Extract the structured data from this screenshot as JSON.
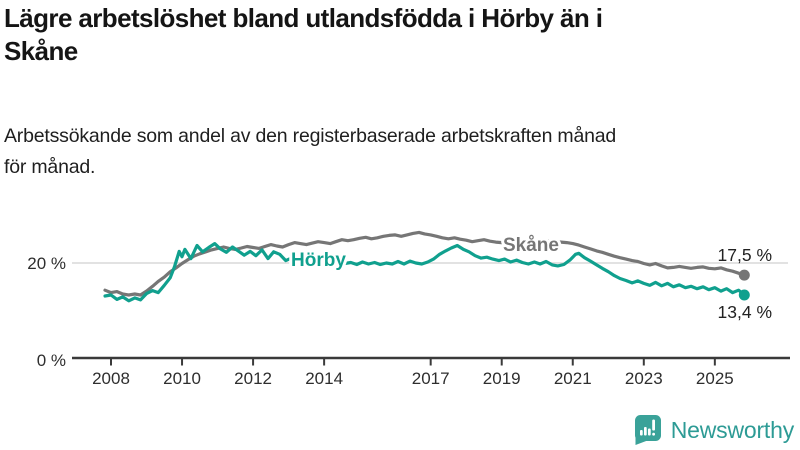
{
  "header": {
    "title": "Lägre arbetslöshet bland utlandsfödda i Hörby än i Skåne",
    "title_lines": [
      "Lägre arbetslöshet bland utlandsfödda i Hörby än i",
      "Skåne"
    ],
    "subtitle": "Arbetssökande som andel av den registerbaserade arbetskraften månad för månad.",
    "subtitle_lines": [
      "Arbetssökande som andel av den registerbaserade arbetskraften månad",
      "för månad."
    ]
  },
  "footer": {
    "brand": "Newsworthy",
    "brand_color": "#2d9b95",
    "logo_icon": "bar-chart-speech-bubble-icon",
    "logo_color": "#3aa299"
  },
  "chart_data": {
    "type": "line",
    "title": "Lägre arbetslöshet bland utlandsfödda i Hörby än i Skåne",
    "subtitle": "Arbetssökande som andel av den registerbaserade arbetskraften månad för månad.",
    "xlabel": "",
    "ylabel": "",
    "x_unit": "year (monthly data)",
    "y_unit": "%",
    "xlim": [
      2007.8,
      2026.5
    ],
    "ylim": [
      0,
      30
    ],
    "grid": "single horizontal gridline at 20%",
    "grid_values": [
      20
    ],
    "x_ticks": [
      2008,
      2010,
      2012,
      2014,
      2017,
      2019,
      2021,
      2023,
      2025
    ],
    "y_ticks": [
      {
        "value": 0,
        "label": "0 %"
      },
      {
        "value": 20,
        "label": "20 %"
      }
    ],
    "legend_position": "inline labels on lines",
    "colors": {
      "skane": "#767676",
      "horby": "#10a08e",
      "grid": "#d9d9d9",
      "axis": "#3a3a3a"
    },
    "series": [
      {
        "name": "Skåne",
        "color": "#767676",
        "end_label": "17,5 %",
        "end_value": 17.5,
        "points": [
          [
            2007.83,
            14.4
          ],
          [
            2008.0,
            13.9
          ],
          [
            2008.17,
            14.1
          ],
          [
            2008.33,
            13.6
          ],
          [
            2008.5,
            13.4
          ],
          [
            2008.67,
            13.6
          ],
          [
            2008.83,
            13.4
          ],
          [
            2009.0,
            14.2
          ],
          [
            2009.17,
            15.2
          ],
          [
            2009.33,
            16.2
          ],
          [
            2009.5,
            17.1
          ],
          [
            2009.67,
            18.2
          ],
          [
            2009.83,
            19.0
          ],
          [
            2010.0,
            19.9
          ],
          [
            2010.17,
            20.7
          ],
          [
            2010.33,
            21.4
          ],
          [
            2010.5,
            21.9
          ],
          [
            2010.67,
            22.3
          ],
          [
            2010.83,
            22.7
          ],
          [
            2011.0,
            23.0
          ],
          [
            2011.17,
            23.3
          ],
          [
            2011.33,
            23.0
          ],
          [
            2011.5,
            22.8
          ],
          [
            2011.67,
            23.1
          ],
          [
            2011.83,
            23.4
          ],
          [
            2012.0,
            23.2
          ],
          [
            2012.17,
            23.0
          ],
          [
            2012.33,
            23.4
          ],
          [
            2012.5,
            23.8
          ],
          [
            2012.67,
            23.5
          ],
          [
            2012.83,
            23.3
          ],
          [
            2013.0,
            23.8
          ],
          [
            2013.17,
            24.2
          ],
          [
            2013.33,
            24.0
          ],
          [
            2013.5,
            23.8
          ],
          [
            2013.67,
            24.1
          ],
          [
            2013.83,
            24.4
          ],
          [
            2014.0,
            24.2
          ],
          [
            2014.17,
            24.0
          ],
          [
            2014.33,
            24.4
          ],
          [
            2014.5,
            24.8
          ],
          [
            2014.67,
            24.6
          ],
          [
            2014.83,
            24.8
          ],
          [
            2015.0,
            25.1
          ],
          [
            2015.17,
            25.3
          ],
          [
            2015.33,
            25.0
          ],
          [
            2015.5,
            25.2
          ],
          [
            2015.67,
            25.5
          ],
          [
            2015.83,
            25.7
          ],
          [
            2016.0,
            25.8
          ],
          [
            2016.17,
            25.5
          ],
          [
            2016.33,
            25.8
          ],
          [
            2016.5,
            26.1
          ],
          [
            2016.67,
            26.3
          ],
          [
            2016.83,
            26.0
          ],
          [
            2017.0,
            25.8
          ],
          [
            2017.17,
            25.5
          ],
          [
            2017.33,
            25.2
          ],
          [
            2017.5,
            25.0
          ],
          [
            2017.67,
            25.2
          ],
          [
            2017.83,
            24.9
          ],
          [
            2018.0,
            24.7
          ],
          [
            2018.17,
            24.4
          ],
          [
            2018.33,
            24.6
          ],
          [
            2018.5,
            24.8
          ],
          [
            2018.67,
            24.5
          ],
          [
            2018.83,
            24.3
          ],
          [
            2019.0,
            24.2
          ],
          [
            2019.17,
            24.0
          ],
          [
            2019.33,
            24.1
          ],
          [
            2019.5,
            23.9
          ],
          [
            2019.67,
            24.0
          ],
          [
            2019.83,
            24.2
          ],
          [
            2020.0,
            24.5
          ],
          [
            2020.17,
            24.7
          ],
          [
            2020.33,
            24.6
          ],
          [
            2020.5,
            24.4
          ],
          [
            2020.67,
            24.3
          ],
          [
            2020.83,
            24.2
          ],
          [
            2021.0,
            24.0
          ],
          [
            2021.17,
            23.7
          ],
          [
            2021.33,
            23.3
          ],
          [
            2021.5,
            22.9
          ],
          [
            2021.67,
            22.5
          ],
          [
            2021.83,
            22.2
          ],
          [
            2022.0,
            21.8
          ],
          [
            2022.17,
            21.4
          ],
          [
            2022.33,
            21.1
          ],
          [
            2022.5,
            20.8
          ],
          [
            2022.67,
            20.5
          ],
          [
            2022.83,
            20.3
          ],
          [
            2023.0,
            19.9
          ],
          [
            2023.17,
            19.6
          ],
          [
            2023.33,
            19.9
          ],
          [
            2023.5,
            19.4
          ],
          [
            2023.67,
            19.0
          ],
          [
            2023.83,
            19.1
          ],
          [
            2024.0,
            19.3
          ],
          [
            2024.17,
            19.1
          ],
          [
            2024.33,
            18.9
          ],
          [
            2024.5,
            19.1
          ],
          [
            2024.67,
            19.2
          ],
          [
            2024.83,
            18.9
          ],
          [
            2025.0,
            18.8
          ],
          [
            2025.17,
            19.0
          ],
          [
            2025.33,
            18.6
          ],
          [
            2025.5,
            18.3
          ],
          [
            2025.67,
            17.9
          ],
          [
            2025.83,
            17.5
          ]
        ]
      },
      {
        "name": "Hörby",
        "color": "#10a08e",
        "end_label": "13,4 %",
        "end_value": 13.4,
        "points": [
          [
            2007.83,
            13.2
          ],
          [
            2008.0,
            13.4
          ],
          [
            2008.17,
            12.5
          ],
          [
            2008.33,
            13.0
          ],
          [
            2008.5,
            12.2
          ],
          [
            2008.67,
            12.8
          ],
          [
            2008.83,
            12.4
          ],
          [
            2009.0,
            13.7
          ],
          [
            2009.17,
            14.3
          ],
          [
            2009.33,
            13.9
          ],
          [
            2009.5,
            15.4
          ],
          [
            2009.67,
            17.0
          ],
          [
            2009.79,
            19.3
          ],
          [
            2009.92,
            22.4
          ],
          [
            2010.0,
            21.3
          ],
          [
            2010.08,
            22.8
          ],
          [
            2010.25,
            20.9
          ],
          [
            2010.42,
            23.6
          ],
          [
            2010.58,
            22.3
          ],
          [
            2010.75,
            23.2
          ],
          [
            2010.92,
            24.0
          ],
          [
            2011.08,
            22.9
          ],
          [
            2011.25,
            22.2
          ],
          [
            2011.42,
            23.3
          ],
          [
            2011.58,
            22.5
          ],
          [
            2011.75,
            21.6
          ],
          [
            2011.92,
            22.4
          ],
          [
            2012.08,
            21.5
          ],
          [
            2012.25,
            22.7
          ],
          [
            2012.42,
            20.9
          ],
          [
            2012.58,
            22.3
          ],
          [
            2012.75,
            21.8
          ],
          [
            2012.92,
            20.5
          ],
          [
            2013.08,
            21.0
          ],
          [
            2013.25,
            21.3
          ],
          [
            2013.42,
            20.6
          ],
          [
            2013.58,
            20.9
          ],
          [
            2013.75,
            20.4
          ],
          [
            2013.92,
            20.7
          ],
          [
            2014.08,
            20.3
          ],
          [
            2014.25,
            20.1
          ],
          [
            2014.42,
            20.4
          ],
          [
            2014.58,
            19.9
          ],
          [
            2014.75,
            20.1
          ],
          [
            2014.92,
            19.7
          ],
          [
            2015.08,
            20.2
          ],
          [
            2015.25,
            19.8
          ],
          [
            2015.42,
            20.1
          ],
          [
            2015.58,
            19.7
          ],
          [
            2015.75,
            20.0
          ],
          [
            2015.92,
            19.8
          ],
          [
            2016.08,
            20.3
          ],
          [
            2016.25,
            19.8
          ],
          [
            2016.42,
            20.4
          ],
          [
            2016.58,
            20.0
          ],
          [
            2016.75,
            19.8
          ],
          [
            2016.92,
            20.2
          ],
          [
            2017.08,
            20.8
          ],
          [
            2017.25,
            21.8
          ],
          [
            2017.42,
            22.5
          ],
          [
            2017.58,
            23.1
          ],
          [
            2017.75,
            23.6
          ],
          [
            2017.92,
            22.8
          ],
          [
            2018.08,
            22.3
          ],
          [
            2018.25,
            21.5
          ],
          [
            2018.42,
            21.0
          ],
          [
            2018.58,
            21.2
          ],
          [
            2018.75,
            20.8
          ],
          [
            2018.92,
            20.5
          ],
          [
            2019.08,
            20.8
          ],
          [
            2019.25,
            20.2
          ],
          [
            2019.42,
            20.6
          ],
          [
            2019.58,
            20.1
          ],
          [
            2019.75,
            19.8
          ],
          [
            2019.92,
            20.2
          ],
          [
            2020.08,
            19.8
          ],
          [
            2020.25,
            20.3
          ],
          [
            2020.42,
            19.6
          ],
          [
            2020.58,
            19.4
          ],
          [
            2020.75,
            19.7
          ],
          [
            2020.92,
            20.6
          ],
          [
            2021.08,
            21.8
          ],
          [
            2021.17,
            22.0
          ],
          [
            2021.33,
            21.1
          ],
          [
            2021.5,
            20.4
          ],
          [
            2021.67,
            19.6
          ],
          [
            2021.83,
            18.9
          ],
          [
            2022.0,
            18.2
          ],
          [
            2022.17,
            17.4
          ],
          [
            2022.33,
            16.8
          ],
          [
            2022.5,
            16.4
          ],
          [
            2022.67,
            15.9
          ],
          [
            2022.83,
            16.3
          ],
          [
            2023.0,
            15.8
          ],
          [
            2023.17,
            15.4
          ],
          [
            2023.33,
            16.0
          ],
          [
            2023.5,
            15.3
          ],
          [
            2023.67,
            15.8
          ],
          [
            2023.83,
            15.1
          ],
          [
            2024.0,
            15.5
          ],
          [
            2024.17,
            14.9
          ],
          [
            2024.33,
            15.2
          ],
          [
            2024.5,
            14.7
          ],
          [
            2024.67,
            15.1
          ],
          [
            2024.83,
            14.5
          ],
          [
            2025.0,
            14.9
          ],
          [
            2025.17,
            14.2
          ],
          [
            2025.33,
            14.7
          ],
          [
            2025.5,
            13.9
          ],
          [
            2025.67,
            14.4
          ],
          [
            2025.83,
            13.4
          ]
        ]
      }
    ]
  }
}
